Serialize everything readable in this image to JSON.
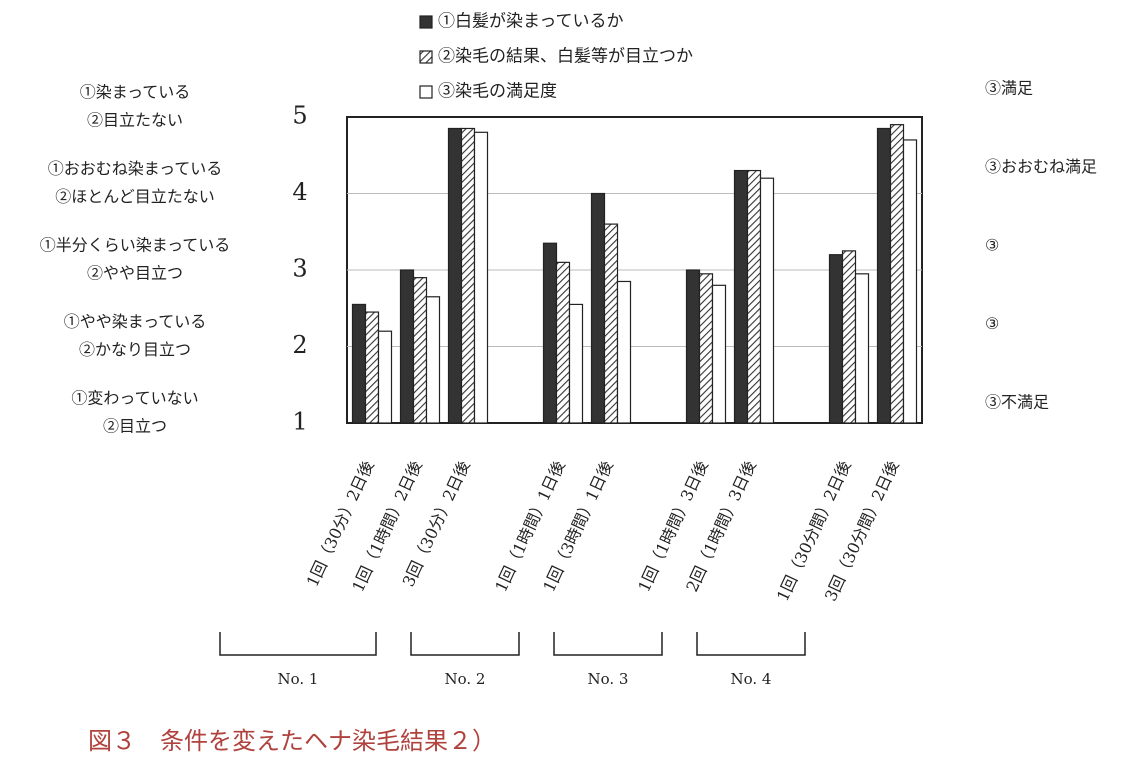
{
  "chart_data": {
    "type": "bar",
    "caption": "図３　条件を変えたヘナ染毛結果２）",
    "categories": [
      "1回（30分）2日後",
      "1回（1時間）2日後",
      "3回（30分）2日後",
      "1回（1時間）1日後",
      "1回（3時間）1日後",
      "1回（1時間）3日後",
      "2回（1時間）3日後",
      "1回（30分間）2日後",
      "3回（30分間）2日後"
    ],
    "groups": [
      {
        "label": "No. 1",
        "span": 3
      },
      {
        "label": "No. 2",
        "span": 2
      },
      {
        "label": "No. 3",
        "span": 2
      },
      {
        "label": "No. 4",
        "span": 2
      }
    ],
    "series": [
      {
        "name": "①白髪が染まっているか",
        "color": "#333333",
        "pattern": "solid",
        "values": [
          2.55,
          3.0,
          4.85,
          3.35,
          4.0,
          3.0,
          4.3,
          3.2,
          4.85
        ]
      },
      {
        "name": "②染毛の結果、白髪等が目立つか",
        "color": "#333333",
        "pattern": "hatch",
        "values": [
          2.45,
          2.9,
          4.85,
          3.1,
          3.6,
          2.95,
          4.3,
          3.25,
          4.9
        ]
      },
      {
        "name": "③染毛の満足度",
        "color": "#ffffff",
        "pattern": "white",
        "values": [
          2.2,
          2.65,
          4.8,
          2.55,
          2.85,
          2.8,
          4.2,
          2.95,
          4.7
        ]
      }
    ],
    "ylim": [
      1,
      5
    ],
    "yticks": [
      1,
      2,
      3,
      4,
      5
    ],
    "grid": true,
    "left_labels": [
      {
        "value": 5,
        "lines": [
          "①染まっている",
          "②目立たない"
        ]
      },
      {
        "value": 4,
        "lines": [
          "①おおむね染まっている",
          "②ほとんど目立たない"
        ]
      },
      {
        "value": 3,
        "lines": [
          "①半分くらい染まっている",
          "②やや目立つ"
        ]
      },
      {
        "value": 2,
        "lines": [
          "①やや染まっている",
          "②かなり目立つ"
        ]
      },
      {
        "value": 1,
        "lines": [
          "①変わっていない",
          "②目立つ"
        ]
      }
    ],
    "right_labels": [
      {
        "value": 5,
        "label": "③満足"
      },
      {
        "value": 4,
        "label": "③おおむね満足"
      },
      {
        "value": 3,
        "label": "③"
      },
      {
        "value": 2,
        "label": "③"
      },
      {
        "value": 1,
        "label": "③不満足"
      }
    ]
  }
}
